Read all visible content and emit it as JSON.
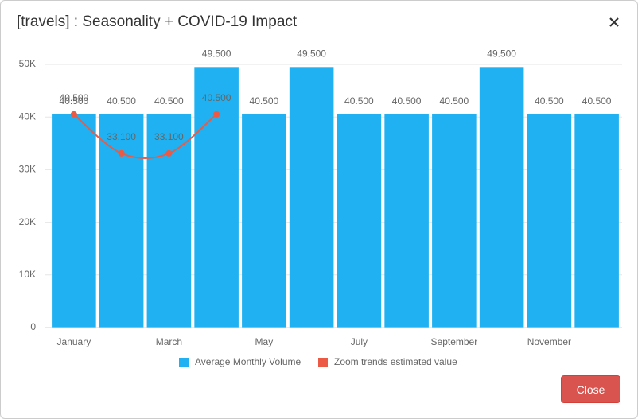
{
  "header": {
    "title": "[travels] : Seasonality + COVID-19 Impact"
  },
  "chart_data": {
    "type": "bar",
    "categories": [
      "January",
      null,
      "March",
      null,
      "May",
      null,
      "July",
      null,
      "September",
      null,
      "November",
      null
    ],
    "series": [
      {
        "name": "Average Monthly Volume",
        "type": "bar",
        "color": "#1fb1f1",
        "values": [
          40500,
          40500,
          40500,
          49500,
          40500,
          49500,
          40500,
          40500,
          40500,
          49500,
          40500,
          40500
        ],
        "value_labels": [
          "40.500",
          "40.500",
          "40.500",
          "49.500",
          "40.500",
          "49.500",
          "40.500",
          "40.500",
          "40.500",
          "49.500",
          "40.500",
          "40.500"
        ]
      },
      {
        "name": "Zoom trends estimated value",
        "type": "line",
        "color": "#ec5a45",
        "values": [
          40500,
          33100,
          33100,
          40500,
          null,
          null,
          null,
          null,
          null,
          null,
          null,
          null
        ],
        "value_labels": [
          "40.500",
          "33.100",
          "33.100",
          "40.500",
          null,
          null,
          null,
          null,
          null,
          null,
          null,
          null
        ]
      }
    ],
    "ylim": [
      0,
      50000
    ],
    "yticks": [
      0,
      {
        "value": 10000,
        "label": "10K"
      },
      {
        "value": 20000,
        "label": "20K"
      },
      {
        "value": 30000,
        "label": "30K"
      },
      {
        "value": 40000,
        "label": "40K"
      },
      {
        "value": 50000,
        "label": "50K"
      }
    ],
    "grid": true
  },
  "close_button": "Close"
}
